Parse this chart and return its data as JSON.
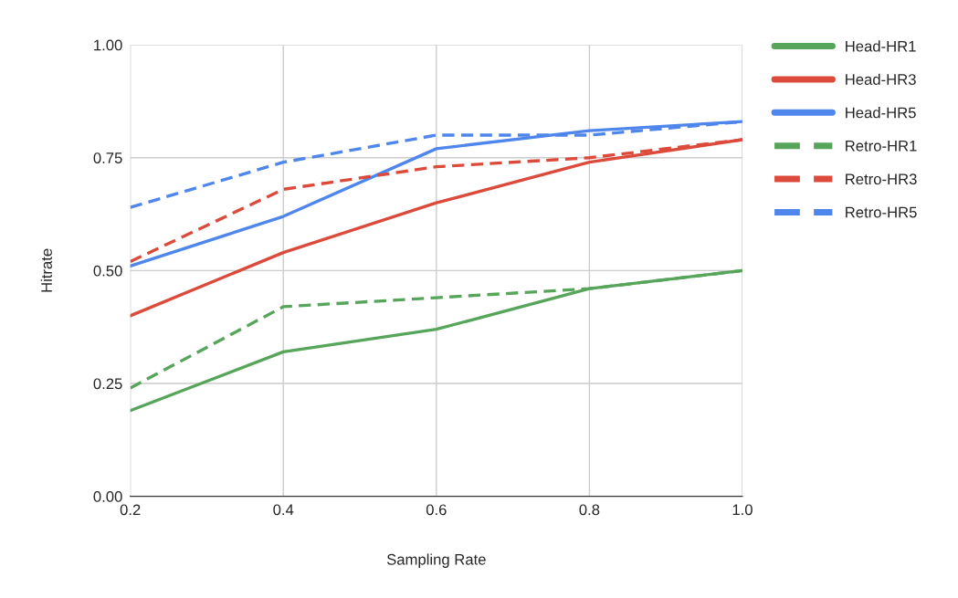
{
  "chart_data": {
    "type": "line",
    "xlabel": "Sampling Rate",
    "ylabel": "Hitrate",
    "x": [
      0.2,
      0.4,
      0.6,
      0.8,
      1.0
    ],
    "series": [
      {
        "name": "Head-HR1",
        "color": "#57a55a",
        "line_style": "solid",
        "values": [
          0.19,
          0.32,
          0.37,
          0.46,
          0.5
        ]
      },
      {
        "name": "Head-HR3",
        "color": "#db4a3a",
        "line_style": "solid",
        "values": [
          0.4,
          0.54,
          0.65,
          0.74,
          0.79
        ]
      },
      {
        "name": "Head-HR5",
        "color": "#4f86ec",
        "line_style": "solid",
        "values": [
          0.51,
          0.62,
          0.77,
          0.81,
          0.83
        ]
      },
      {
        "name": "Retro-HR1",
        "color": "#57a55a",
        "line_style": "dashed",
        "values": [
          0.24,
          0.42,
          0.44,
          0.46,
          0.5
        ]
      },
      {
        "name": "Retro-HR3",
        "color": "#db4a3a",
        "line_style": "dashed",
        "values": [
          0.52,
          0.68,
          0.73,
          0.75,
          0.79
        ]
      },
      {
        "name": "Retro-HR5",
        "color": "#4f86ec",
        "line_style": "dashed",
        "values": [
          0.64,
          0.74,
          0.8,
          0.8,
          0.83
        ]
      }
    ],
    "xlim": [
      0.2,
      1.0
    ],
    "xticks": [
      {
        "value": 0.2,
        "label": "0.2"
      },
      {
        "value": 0.4,
        "label": "0.4"
      },
      {
        "value": 0.6,
        "label": "0.6"
      },
      {
        "value": 0.8,
        "label": "0.8"
      },
      {
        "value": 1.0,
        "label": "1.0"
      }
    ],
    "ylim": [
      0,
      1.0
    ],
    "yticks": [
      {
        "value": 0,
        "label": "0.00"
      },
      {
        "value": 0.25,
        "label": "0.25"
      },
      {
        "value": 0.5,
        "label": "0.50"
      },
      {
        "value": 0.75,
        "label": "0.75"
      },
      {
        "value": 1.0,
        "label": "1.00"
      }
    ],
    "grid": true,
    "legend": "right"
  }
}
